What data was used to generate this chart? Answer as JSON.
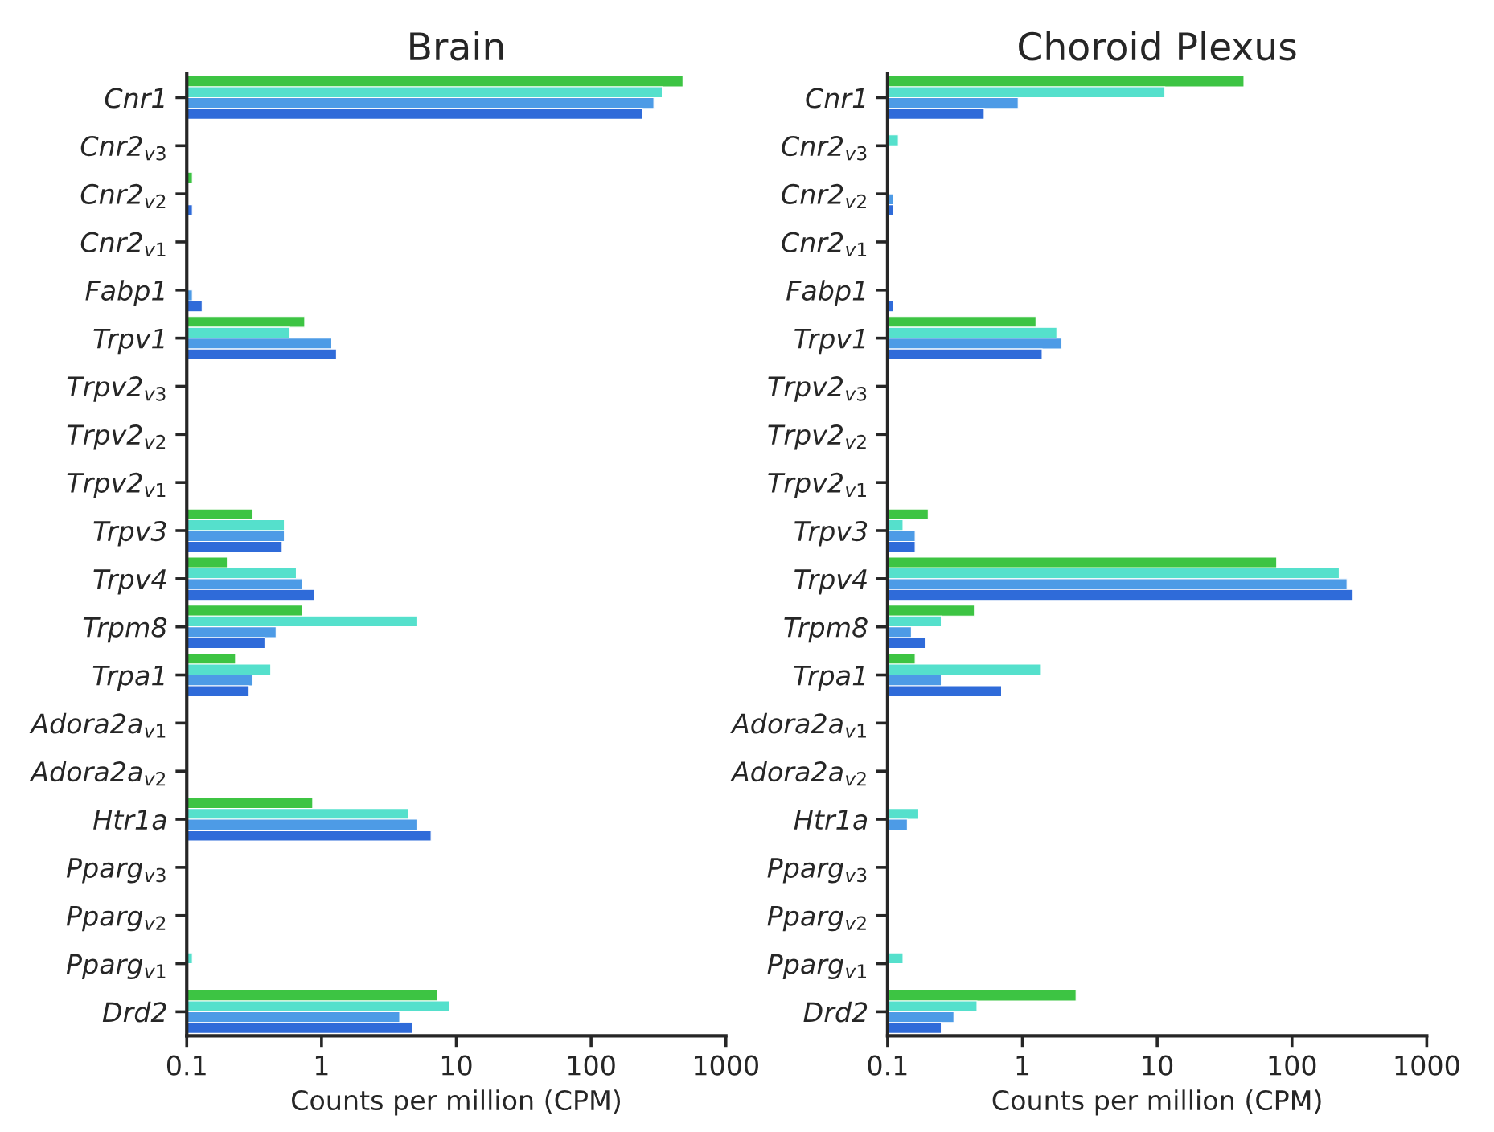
{
  "chart_data": [
    {
      "type": "bar",
      "orientation": "horizontal",
      "title": "Brain",
      "xlabel": "Counts per million (CPM)",
      "log": "x",
      "xlim": [
        0.1,
        1000
      ],
      "xticks": [
        0.1,
        1,
        10,
        100,
        1000
      ],
      "grid": false,
      "legend": false,
      "categories": [
        "Cnr1",
        "Cnr2$_{v3}$",
        "Cnr2$_{v2}$",
        "Cnr2$_{v1}$",
        "Fabp1",
        "Trpv1",
        "Trpv2$_{v3}$",
        "Trpv2$_{v2}$",
        "Trpv2$_{v1}$",
        "Trpv3",
        "Trpv4",
        "Trpm8",
        "Trpa1",
        "Adora2a$_{v1}$",
        "Adora2a$_{v2}$",
        "Htr1a",
        "Pparg$_{v3}$",
        "Pparg$_{v2}$",
        "Pparg$_{v1}$",
        "Drd2"
      ],
      "series": [
        {
          "color": "#3dc443",
          "values": [
            480,
            null,
            0.11,
            null,
            null,
            0.75,
            null,
            null,
            null,
            0.31,
            0.2,
            0.72,
            0.23,
            null,
            null,
            0.86,
            null,
            null,
            null,
            7.2
          ]
        },
        {
          "color": "#55e0cc",
          "values": [
            337,
            null,
            null,
            null,
            null,
            0.58,
            null,
            null,
            null,
            0.53,
            0.65,
            5.1,
            0.42,
            null,
            null,
            4.4,
            null,
            null,
            0.11,
            8.9
          ]
        },
        {
          "color": "#4d9be6",
          "values": [
            292,
            null,
            null,
            null,
            0.11,
            1.19,
            null,
            null,
            null,
            0.53,
            0.72,
            0.46,
            0.31,
            null,
            null,
            5.1,
            null,
            null,
            null,
            3.8
          ]
        },
        {
          "color": "#2f6bd9",
          "values": [
            240,
            null,
            0.11,
            null,
            0.13,
            1.29,
            null,
            null,
            null,
            0.51,
            0.88,
            0.38,
            0.29,
            null,
            null,
            6.5,
            null,
            null,
            null,
            4.7
          ]
        }
      ]
    },
    {
      "type": "bar",
      "orientation": "horizontal",
      "title": "Choroid Plexus",
      "xlabel": "Counts per million (CPM)",
      "log": "x",
      "xlim": [
        0.1,
        1000
      ],
      "xticks": [
        0.1,
        1,
        10,
        100,
        1000
      ],
      "grid": false,
      "legend": false,
      "categories": [
        "Cnr1",
        "Cnr2$_{v3}$",
        "Cnr2$_{v2}$",
        "Cnr2$_{v1}$",
        "Fabp1",
        "Trpv1",
        "Trpv2$_{v3}$",
        "Trpv2$_{v2}$",
        "Trpv2$_{v1}$",
        "Trpv3",
        "Trpv4",
        "Trpm8",
        "Trpa1",
        "Adora2a$_{v1}$",
        "Adora2a$_{v2}$",
        "Htr1a",
        "Pparg$_{v3}$",
        "Pparg$_{v2}$",
        "Pparg$_{v1}$",
        "Drd2"
      ],
      "series": [
        {
          "color": "#3dc443",
          "values": [
            44,
            null,
            null,
            null,
            null,
            1.26,
            null,
            null,
            null,
            0.2,
            77,
            0.44,
            0.16,
            null,
            null,
            null,
            null,
            null,
            null,
            2.5
          ]
        },
        {
          "color": "#55e0cc",
          "values": [
            11.4,
            0.12,
            null,
            null,
            null,
            1.8,
            null,
            null,
            null,
            0.13,
            224,
            0.25,
            1.38,
            null,
            null,
            0.17,
            null,
            null,
            0.13,
            0.46
          ]
        },
        {
          "color": "#4d9be6",
          "values": [
            0.93,
            null,
            0.11,
            null,
            null,
            1.95,
            null,
            null,
            null,
            0.16,
            256,
            0.15,
            0.25,
            null,
            null,
            0.14,
            null,
            null,
            null,
            0.31
          ]
        },
        {
          "color": "#2f6bd9",
          "values": [
            0.52,
            null,
            0.11,
            null,
            0.11,
            1.4,
            null,
            null,
            null,
            0.16,
            284,
            0.19,
            0.7,
            null,
            null,
            null,
            null,
            null,
            null,
            0.25
          ]
        }
      ]
    }
  ]
}
